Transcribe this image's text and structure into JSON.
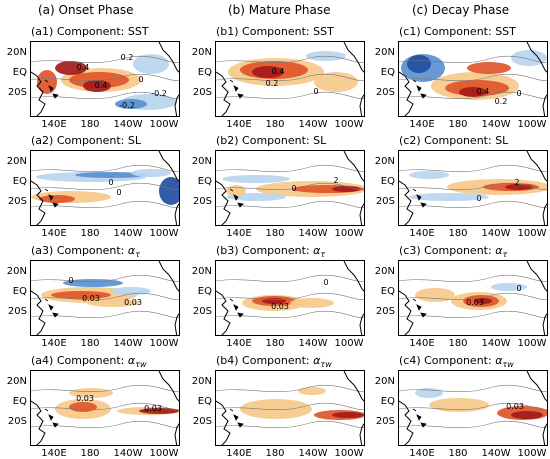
{
  "columns": [
    {
      "title": "(a) Onset Phase"
    },
    {
      "title": "(b) Mature Phase"
    },
    {
      "title": "(c) Decay Phase"
    }
  ],
  "rows": [
    {
      "label": "SST",
      "panels": [
        "(a1) Component:",
        "(b1) Component:",
        "(c1) Component:"
      ]
    },
    {
      "label": "SL",
      "panels": [
        "(a2) Component:",
        "(b2) Component:",
        "(c2) Component:"
      ]
    },
    {
      "label": "α",
      "sub": "τ",
      "panels": [
        "(a3) Component:",
        "(b3) Component:",
        "(c3) Component:"
      ]
    },
    {
      "label": "α",
      "sub": "τw",
      "panels": [
        "(a4) Component:",
        "(b4) Component:",
        "(c4) Component:"
      ]
    }
  ],
  "axes": {
    "y_ticks": [
      "20N",
      "EQ",
      "20S"
    ],
    "x_ticks": [
      "140E",
      "180",
      "140W",
      "100W"
    ]
  },
  "contour_labels": {
    "a1": [
      "0.2",
      "0.4",
      "0.4",
      "0",
      "-0.2",
      "-0.2"
    ],
    "b1": [
      "0.4",
      "0.2",
      "0"
    ],
    "c1": [
      "0.4",
      "0.2",
      "0"
    ],
    "a2": [
      "0",
      "0"
    ],
    "b2": [
      "2",
      "0"
    ],
    "c2": [
      "2",
      "0"
    ],
    "a3": [
      "0.03",
      "0.03",
      "0"
    ],
    "b3": [
      "0.03",
      "0"
    ],
    "c3": [
      "0.03",
      "0"
    ],
    "a4": [
      "0.03",
      "0.03"
    ],
    "b4": [],
    "c4": [
      "0.03"
    ]
  },
  "colors": {
    "warm_dark": "#a31a1a",
    "warm_mid": "#e0552a",
    "warm_light": "#f6c98a",
    "cool_dark": "#1f4fa0",
    "cool_mid": "#5a90d0",
    "cool_light": "#b9d5ef"
  }
}
